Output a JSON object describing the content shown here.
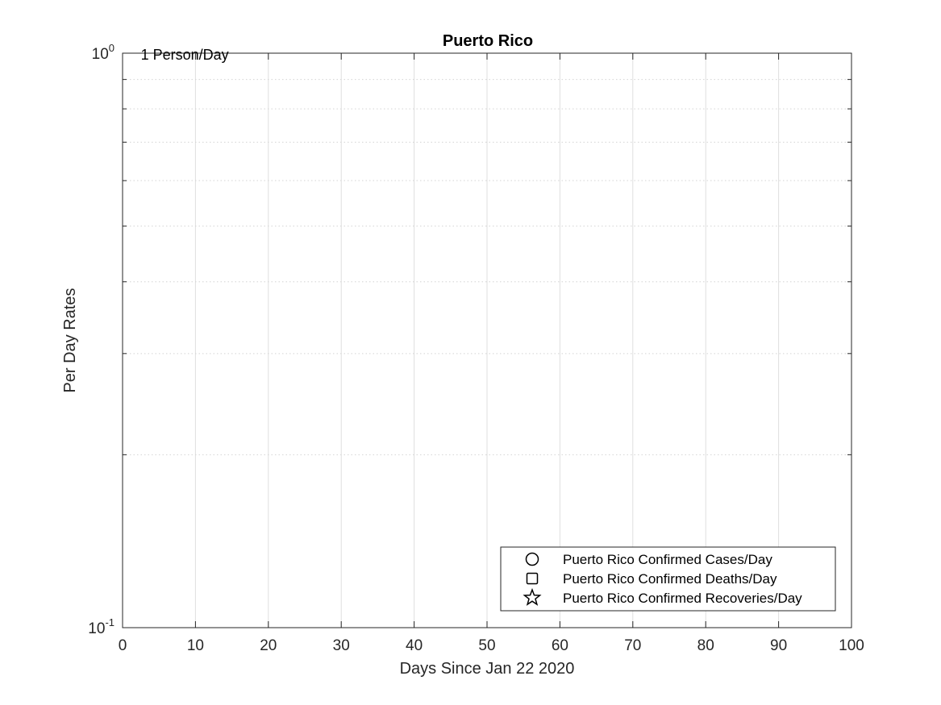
{
  "chart_data": {
    "type": "scatter",
    "title": "Puerto Rico",
    "xlabel": "Days Since Jan 22 2020",
    "ylabel": "Per Day Rates",
    "x_scale": "linear",
    "y_scale": "log",
    "xlim": [
      0,
      100
    ],
    "ylim": [
      0.1,
      1
    ],
    "x_ticks": [
      0,
      10,
      20,
      30,
      40,
      50,
      60,
      70,
      80,
      90,
      100
    ],
    "x_tick_labels": [
      "0",
      "10",
      "20",
      "30",
      "40",
      "50",
      "60",
      "70",
      "80",
      "90",
      "100"
    ],
    "y_ticks": [
      0.1,
      1
    ],
    "y_tick_labels": [
      {
        "base": "10",
        "exponent": "-1"
      },
      {
        "base": "10",
        "exponent": "0"
      }
    ],
    "y_minor_ticks": [
      0.2,
      0.3,
      0.4,
      0.5,
      0.6,
      0.7,
      0.8,
      0.9
    ],
    "grid": true,
    "minor_grid": true,
    "legend_position": "bottom-right",
    "annotation": {
      "text": "1 Person/Day",
      "y": 1
    },
    "series": [
      {
        "name": "Puerto Rico Confirmed Cases/Day",
        "marker": "circle",
        "points": []
      },
      {
        "name": "Puerto Rico Confirmed Deaths/Day",
        "marker": "square",
        "points": []
      },
      {
        "name": "Puerto Rico Confirmed Recoveries/Day",
        "marker": "star",
        "points": []
      }
    ]
  }
}
